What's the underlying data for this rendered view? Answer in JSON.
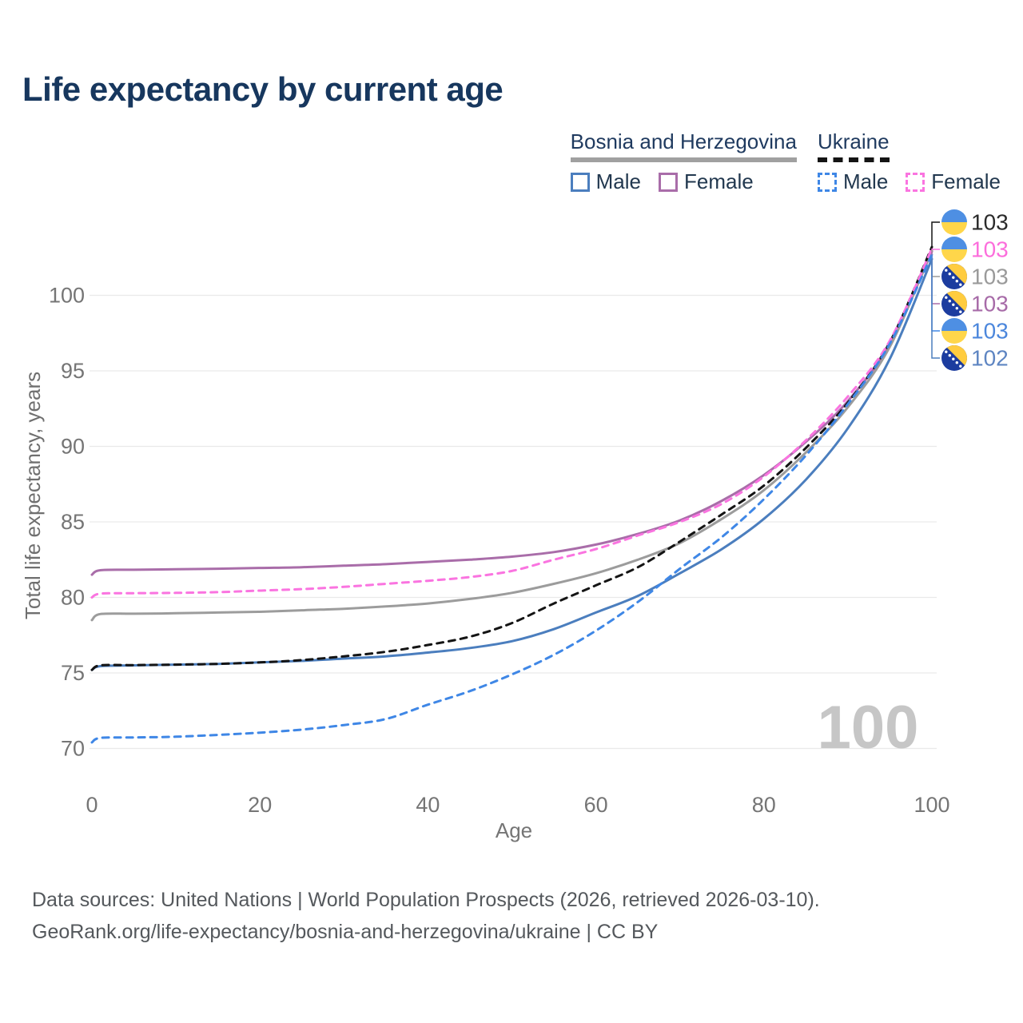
{
  "title": "Life expectancy by current age",
  "legend": {
    "groups": [
      {
        "label": "Bosnia and Herzegovina",
        "line_style": "solid",
        "underline_color": "#A0A0A0",
        "items": [
          {
            "label": "Male",
            "color": "#4B7EBE"
          },
          {
            "label": "Female",
            "color": "#A96DA9"
          }
        ]
      },
      {
        "label": "Ukraine",
        "line_style": "dashed",
        "underline_color": "#141414",
        "items": [
          {
            "label": "Male",
            "color": "#3F87E6"
          },
          {
            "label": "Female",
            "color": "#FA74E0"
          }
        ]
      }
    ]
  },
  "chart_data": {
    "type": "line",
    "title": "Life expectancy by current age",
    "xlabel": "Age",
    "ylabel": "Total life expectancy, years",
    "x_ticks": [
      0,
      20,
      40,
      60,
      80,
      100
    ],
    "y_ticks": [
      70,
      75,
      80,
      85,
      90,
      95,
      100
    ],
    "xlim": [
      0,
      100
    ],
    "ylim": [
      68.5,
      104
    ],
    "grid": "horizontal",
    "watermark": "100",
    "legend_position": "top-right",
    "x": [
      0,
      1,
      5,
      10,
      15,
      20,
      25,
      30,
      35,
      40,
      45,
      50,
      55,
      60,
      65,
      70,
      75,
      80,
      85,
      90,
      95,
      100
    ],
    "series": [
      {
        "key": "bosnia_female",
        "name": "Bosnia and Herzegovina — Female",
        "style": "solid",
        "color": "#A96DA9",
        "flag": "ba",
        "label_value": "103",
        "label_color": "#A76BA8",
        "values": [
          81.5,
          81.8,
          81.83,
          81.86,
          81.9,
          81.95,
          82.0,
          82.1,
          82.2,
          82.35,
          82.5,
          82.7,
          83.0,
          83.5,
          84.2,
          85.1,
          86.4,
          88.1,
          90.3,
          93.0,
          96.8,
          102.9
        ]
      },
      {
        "key": "bosnia_total",
        "name": "Bosnia and Herzegovina — Total",
        "style": "solid",
        "color": "#9C9C9C",
        "flag": "ba",
        "label_value": "103",
        "label_color": "#9A9A9A",
        "values": [
          78.5,
          78.9,
          78.92,
          78.95,
          79.0,
          79.05,
          79.15,
          79.25,
          79.4,
          79.6,
          79.9,
          80.3,
          80.9,
          81.6,
          82.5,
          83.6,
          85.2,
          87.1,
          89.6,
          92.6,
          96.6,
          103.0
        ]
      },
      {
        "key": "bosnia_male",
        "name": "Bosnia and Herzegovina — Male",
        "style": "solid",
        "color": "#4B7EBE",
        "flag": "ba",
        "label_value": "102",
        "label_color": "#5E85C2",
        "values": [
          75.2,
          75.45,
          75.5,
          75.55,
          75.6,
          75.7,
          75.8,
          75.95,
          76.1,
          76.35,
          76.65,
          77.1,
          77.9,
          79.0,
          80.1,
          81.6,
          83.2,
          85.2,
          87.8,
          91.2,
          95.8,
          102.4
        ]
      },
      {
        "key": "ukraine_total",
        "name": "Ukraine — Total",
        "style": "dashed",
        "color": "#141414",
        "flag": "ua",
        "label_value": "103",
        "label_color": "#2B2B2B",
        "values": [
          75.2,
          75.5,
          75.52,
          75.55,
          75.6,
          75.7,
          75.85,
          76.1,
          76.4,
          76.85,
          77.4,
          78.3,
          79.6,
          80.8,
          82.0,
          83.7,
          85.5,
          87.4,
          89.9,
          92.9,
          96.9,
          103.2
        ]
      },
      {
        "key": "ukraine_female",
        "name": "Ukraine — Female",
        "style": "dashed",
        "color": "#FA74E0",
        "flag": "ua",
        "label_value": "103",
        "label_color": "#FC6EDC",
        "values": [
          80.0,
          80.25,
          80.28,
          80.3,
          80.35,
          80.45,
          80.55,
          80.7,
          80.9,
          81.1,
          81.35,
          81.75,
          82.5,
          83.2,
          84.1,
          85.0,
          86.2,
          88.0,
          90.4,
          93.3,
          97.0,
          103.1
        ]
      },
      {
        "key": "ukraine_male",
        "name": "Ukraine — Male",
        "style": "dashed",
        "color": "#3F87E6",
        "flag": "ua",
        "label_value": "103",
        "label_color": "#4C87DC",
        "values": [
          70.4,
          70.7,
          70.73,
          70.78,
          70.9,
          71.05,
          71.25,
          71.55,
          71.95,
          72.9,
          73.8,
          74.9,
          76.2,
          77.8,
          79.7,
          81.9,
          84.0,
          86.5,
          89.4,
          92.8,
          96.8,
          102.7
        ]
      }
    ],
    "label_order": [
      "ukraine_total",
      "ukraine_female",
      "bosnia_total",
      "bosnia_female",
      "ukraine_male",
      "bosnia_male"
    ],
    "flag_colors": {
      "ua_blue": "#4E8FE3",
      "ua_yellow": "#FFD64A",
      "ba_blue": "#1C3C9F",
      "ba_yellow": "#FFCC3F",
      "ba_star": "#FFFFFF"
    }
  },
  "footer": {
    "line1": "Data sources: United Nations | World Population Prospects (2026, retrieved 2026-03-10).",
    "line2": "GeoRank.org/life-expectancy/bosnia-and-herzegovina/ukraine | CC BY"
  }
}
